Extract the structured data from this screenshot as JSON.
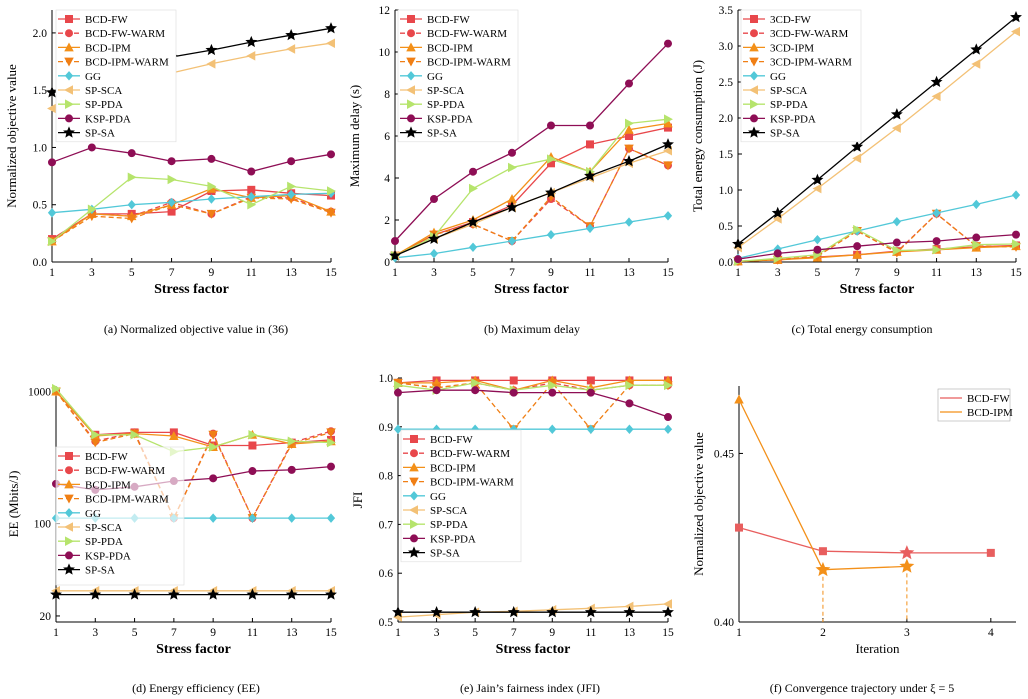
{
  "series_styles": {
    "BCD-FW": {
      "color": "#e8474b",
      "dash": "",
      "marker": "square"
    },
    "BCD-FW-WARM": {
      "color": "#e8474b",
      "dash": "5,3",
      "marker": "circle"
    },
    "BCD-IPM": {
      "color": "#f39019",
      "dash": "",
      "marker": "triangle"
    },
    "BCD-IPM-WARM": {
      "color": "#f07f15",
      "dash": "5,3",
      "marker": "triangle-down"
    },
    "GG": {
      "color": "#52c8d8",
      "dash": "",
      "marker": "diamond"
    },
    "SP-SCA": {
      "color": "#f3c176",
      "dash": "",
      "marker": "triangle-left"
    },
    "SP-PDA": {
      "color": "#b6e46c",
      "dash": "",
      "marker": "triangle-right"
    },
    "KSP-PDA": {
      "color": "#8e0e55",
      "dash": "",
      "marker": "circle"
    },
    "SP-SA": {
      "color": "#000000",
      "dash": "",
      "marker": "star"
    },
    "BCD-FW-f": {
      "color": "#e85e5e",
      "dash": "",
      "marker": "square"
    },
    "BCD-IPM-f": {
      "color": "#f39019",
      "dash": "",
      "marker": "triangle"
    }
  },
  "captions": [
    "(a) Normalized objective value in (36)",
    "(b) Maximum delay",
    "(c) Total energy consumption",
    "(d) Energy efficiency (EE)",
    "(e) Jain’s fairness index (JFI)",
    "(f) Convergence trajectory under ξ = 5"
  ],
  "chart_data": [
    {
      "type": "line",
      "xlabel": "Stress factor",
      "ylabel": "Normalized objective value",
      "xlim": [
        1,
        15
      ],
      "ylim": [
        0,
        2.2
      ],
      "xticks": [
        1,
        3,
        5,
        7,
        9,
        11,
        13,
        15
      ],
      "yticks": [
        0.0,
        0.5,
        1.0,
        1.5,
        2.0
      ],
      "ytick_labels": [
        "0.0",
        "0.5",
        "1.0",
        "1.5",
        "2.0"
      ],
      "legend": "top-left",
      "x": [
        1,
        3,
        5,
        7,
        9,
        11,
        13,
        15
      ],
      "series": [
        {
          "name": "BCD-FW",
          "values": [
            0.2,
            0.42,
            0.42,
            0.44,
            0.62,
            0.63,
            0.6,
            0.58
          ]
        },
        {
          "name": "BCD-FW-WARM",
          "values": [
            0.2,
            0.42,
            0.4,
            0.52,
            0.42,
            0.57,
            0.56,
            0.44
          ]
        },
        {
          "name": "BCD-IPM",
          "values": [
            0.18,
            0.42,
            0.4,
            0.5,
            0.64,
            0.56,
            0.58,
            0.44
          ]
        },
        {
          "name": "BCD-IPM-WARM",
          "values": [
            0.18,
            0.4,
            0.38,
            0.5,
            0.42,
            0.56,
            0.55,
            0.43
          ]
        },
        {
          "name": "GG",
          "values": [
            0.43,
            0.46,
            0.5,
            0.52,
            0.55,
            0.57,
            0.59,
            0.6
          ]
        },
        {
          "name": "SP-SCA",
          "values": [
            1.34,
            1.44,
            1.55,
            1.65,
            1.73,
            1.8,
            1.86,
            1.91
          ]
        },
        {
          "name": "SP-PDA",
          "values": [
            0.18,
            0.46,
            0.74,
            0.72,
            0.66,
            0.5,
            0.66,
            0.62
          ]
        },
        {
          "name": "KSP-PDA",
          "values": [
            0.87,
            1.0,
            0.95,
            0.88,
            0.9,
            0.79,
            0.88,
            0.94
          ]
        },
        {
          "name": "SP-SA",
          "values": [
            1.48,
            1.6,
            1.71,
            1.79,
            1.85,
            1.92,
            1.98,
            2.04
          ]
        }
      ]
    },
    {
      "type": "line",
      "xlabel": "Stress factor",
      "ylabel": "Maximum delay (s)",
      "xlim": [
        1,
        15
      ],
      "ylim": [
        0,
        12
      ],
      "xticks": [
        1,
        3,
        5,
        7,
        9,
        11,
        13,
        15
      ],
      "yticks": [
        0,
        2,
        4,
        6,
        8,
        10,
        12
      ],
      "ytick_labels": [
        "0",
        "2",
        "4",
        "6",
        "8",
        "10",
        "12"
      ],
      "legend": "top-left",
      "x": [
        1,
        3,
        5,
        7,
        9,
        11,
        13,
        15
      ],
      "series": [
        {
          "name": "BCD-FW",
          "values": [
            0.3,
            1.3,
            1.9,
            2.7,
            4.7,
            5.6,
            6.0,
            6.4
          ]
        },
        {
          "name": "BCD-FW-WARM",
          "values": [
            0.3,
            1.3,
            1.8,
            1.0,
            3.0,
            1.7,
            5.4,
            4.6
          ]
        },
        {
          "name": "BCD-IPM",
          "values": [
            0.3,
            1.4,
            2.0,
            3.0,
            5.0,
            4.3,
            6.3,
            6.6
          ]
        },
        {
          "name": "BCD-IPM-WARM",
          "values": [
            0.3,
            1.3,
            1.8,
            1.0,
            3.1,
            1.7,
            5.4,
            4.6
          ]
        },
        {
          "name": "GG",
          "values": [
            0.2,
            0.4,
            0.7,
            1.0,
            1.3,
            1.6,
            1.9,
            2.2
          ]
        },
        {
          "name": "SP-SCA",
          "values": [
            0.3,
            1.1,
            1.8,
            2.6,
            3.3,
            4.0,
            4.7,
            5.3
          ]
        },
        {
          "name": "SP-PDA",
          "values": [
            0.3,
            1.2,
            3.5,
            4.5,
            4.9,
            4.3,
            6.6,
            6.8
          ]
        },
        {
          "name": "KSP-PDA",
          "values": [
            1.0,
            3.0,
            4.3,
            5.2,
            6.5,
            6.5,
            8.5,
            10.4
          ]
        },
        {
          "name": "SP-SA",
          "values": [
            0.3,
            1.1,
            1.9,
            2.6,
            3.3,
            4.1,
            4.8,
            5.6
          ]
        }
      ]
    },
    {
      "type": "line",
      "xlabel": "Stress factor",
      "ylabel": "Total energy consumption (J)",
      "xlim": [
        1,
        15
      ],
      "ylim": [
        0,
        3.5
      ],
      "xticks": [
        1,
        3,
        5,
        7,
        9,
        11,
        13,
        15
      ],
      "yticks": [
        0.0,
        0.5,
        1.0,
        1.5,
        2.0,
        2.5,
        3.0,
        3.5
      ],
      "ytick_labels": [
        "0.0",
        "0.5",
        "1.0",
        "1.5",
        "2.0",
        "2.5",
        "3.0",
        "3.5"
      ],
      "legend": "top-left",
      "legend_labels": [
        "3CD-FW",
        "3CD-FW-WARM",
        "3CD-IPM",
        "3CD-IPM-WARM",
        "GG",
        "SP-SCA",
        "SP-PDA",
        "KSP-PDA",
        "SP-SA"
      ],
      "x": [
        1,
        3,
        5,
        7,
        9,
        11,
        13,
        15
      ],
      "series": [
        {
          "name": "BCD-FW",
          "values": [
            0.01,
            0.03,
            0.07,
            0.1,
            0.15,
            0.18,
            0.21,
            0.23
          ]
        },
        {
          "name": "BCD-FW-WARM",
          "values": [
            0.01,
            0.03,
            0.08,
            0.43,
            0.14,
            0.67,
            0.22,
            0.22
          ]
        },
        {
          "name": "BCD-IPM",
          "values": [
            0.01,
            0.03,
            0.06,
            0.1,
            0.14,
            0.17,
            0.2,
            0.22
          ]
        },
        {
          "name": "BCD-IPM-WARM",
          "values": [
            0.01,
            0.03,
            0.08,
            0.43,
            0.13,
            0.67,
            0.22,
            0.21
          ]
        },
        {
          "name": "GG",
          "values": [
            0.05,
            0.18,
            0.31,
            0.43,
            0.56,
            0.68,
            0.8,
            0.93
          ]
        },
        {
          "name": "SP-SCA",
          "values": [
            0.2,
            0.6,
            1.02,
            1.44,
            1.86,
            2.3,
            2.75,
            3.2
          ]
        },
        {
          "name": "SP-PDA",
          "values": [
            0.01,
            0.05,
            0.1,
            0.45,
            0.16,
            0.17,
            0.24,
            0.25
          ]
        },
        {
          "name": "KSP-PDA",
          "values": [
            0.04,
            0.12,
            0.17,
            0.22,
            0.27,
            0.29,
            0.34,
            0.38
          ]
        },
        {
          "name": "SP-SA",
          "values": [
            0.25,
            0.68,
            1.14,
            1.6,
            2.05,
            2.5,
            2.95,
            3.4
          ]
        }
      ]
    },
    {
      "type": "line",
      "xlabel": "Stress factor",
      "ylabel": "EE (Mbits/J)",
      "yscale": "log",
      "xlim": [
        1,
        15
      ],
      "ylim": [
        18,
        1100
      ],
      "xticks": [
        1,
        3,
        5,
        7,
        9,
        11,
        13,
        15
      ],
      "yticks": [
        20,
        100,
        1000
      ],
      "ytick_labels": [
        "20",
        "100",
        "1000"
      ],
      "legend": "center-left",
      "x": [
        1,
        3,
        5,
        7,
        9,
        11,
        13,
        15
      ],
      "series": [
        {
          "name": "BCD-FW",
          "values": [
            1000,
            470,
            490,
            490,
            390,
            390,
            410,
            430
          ]
        },
        {
          "name": "BCD-FW-WARM",
          "values": [
            1000,
            420,
            490,
            110,
            480,
            110,
            410,
            500
          ]
        },
        {
          "name": "BCD-IPM",
          "values": [
            1000,
            460,
            480,
            460,
            380,
            470,
            400,
            420
          ]
        },
        {
          "name": "BCD-IPM-WARM",
          "values": [
            1000,
            410,
            480,
            110,
            470,
            110,
            400,
            490
          ]
        },
        {
          "name": "GG",
          "values": [
            110,
            110,
            110,
            110,
            110,
            110,
            110,
            110
          ]
        },
        {
          "name": "SP-SCA",
          "values": [
            31,
            31,
            31,
            31,
            31,
            31,
            31,
            31
          ]
        },
        {
          "name": "SP-PDA",
          "values": [
            1050,
            470,
            470,
            350,
            380,
            470,
            420,
            410
          ]
        },
        {
          "name": "KSP-PDA",
          "values": [
            200,
            180,
            190,
            210,
            220,
            250,
            255,
            270
          ]
        },
        {
          "name": "SP-SA",
          "values": [
            29,
            29,
            29,
            29,
            29,
            29,
            29,
            29
          ]
        }
      ]
    },
    {
      "type": "line",
      "xlabel": "Stress factor",
      "ylabel": "JFI",
      "xlim": [
        1,
        15
      ],
      "ylim": [
        0.5,
        1.0
      ],
      "xticks": [
        1,
        3,
        5,
        7,
        9,
        11,
        13,
        15
      ],
      "yticks": [
        0.5,
        0.6,
        0.7,
        0.8,
        0.9,
        1.0
      ],
      "ytick_labels": [
        "0.5",
        "0.6",
        "0.7",
        "0.8",
        "0.9",
        "1.0"
      ],
      "legend": "center-left",
      "x": [
        1,
        3,
        5,
        7,
        9,
        11,
        13,
        15
      ],
      "series": [
        {
          "name": "BCD-FW",
          "values": [
            0.99,
            0.995,
            0.995,
            0.995,
            0.995,
            0.995,
            0.995,
            0.995
          ]
        },
        {
          "name": "BCD-FW-WARM",
          "values": [
            0.99,
            0.98,
            0.99,
            0.975,
            0.99,
            0.975,
            0.985,
            0.985
          ]
        },
        {
          "name": "BCD-IPM",
          "values": [
            0.99,
            0.99,
            0.995,
            0.975,
            0.995,
            0.98,
            0.995,
            0.995
          ]
        },
        {
          "name": "BCD-IPM-WARM",
          "values": [
            0.99,
            0.98,
            0.99,
            0.895,
            0.99,
            0.895,
            0.985,
            0.985
          ]
        },
        {
          "name": "GG",
          "values": [
            0.895,
            0.895,
            0.895,
            0.895,
            0.895,
            0.895,
            0.895,
            0.895
          ]
        },
        {
          "name": "SP-SCA",
          "values": [
            0.51,
            0.515,
            0.52,
            0.522,
            0.525,
            0.528,
            0.532,
            0.537
          ]
        },
        {
          "name": "SP-PDA",
          "values": [
            0.985,
            0.975,
            0.99,
            0.975,
            0.985,
            0.975,
            0.985,
            0.985
          ]
        },
        {
          "name": "KSP-PDA",
          "values": [
            0.97,
            0.975,
            0.975,
            0.97,
            0.97,
            0.97,
            0.948,
            0.92
          ]
        },
        {
          "name": "SP-SA",
          "values": [
            0.52,
            0.52,
            0.52,
            0.52,
            0.52,
            0.52,
            0.52,
            0.52
          ]
        }
      ]
    },
    {
      "type": "line",
      "xlabel": "Iteration",
      "ylabel": "Normalized objective value",
      "xlim": [
        1,
        4.3
      ],
      "ylim": [
        0.4,
        0.47
      ],
      "xticks": [
        1,
        2,
        3,
        4
      ],
      "yticks": [
        0.4,
        0.45
      ],
      "ytick_labels": [
        "0.40",
        "0.45"
      ],
      "legend": "top-right",
      "series": [
        {
          "name": "BCD-FW",
          "x": [
            1,
            2,
            3,
            4
          ],
          "values": [
            0.428,
            0.421,
            0.4205,
            0.4205
          ],
          "star_at": 3
        },
        {
          "name": "BCD-IPM",
          "x": [
            1,
            2,
            3
          ],
          "values": [
            0.466,
            0.4155,
            0.4165
          ],
          "stars_at": [
            2,
            3
          ]
        }
      ],
      "dropline_x": [
        2,
        3
      ]
    }
  ]
}
